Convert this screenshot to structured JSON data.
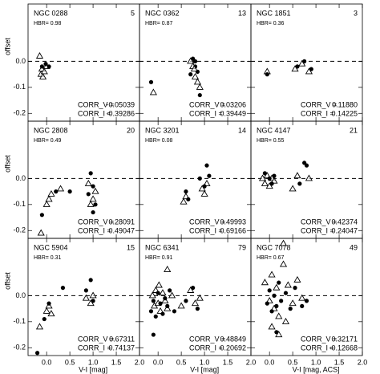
{
  "chart_data": [
    {
      "type": "scatter",
      "title": "NGC 0288",
      "count": 5,
      "hbr": "HBR= 0.98",
      "corr_v_label": "CORR_V =",
      "corr_v": "-0.05039",
      "corr_i_label": "CORR_I =",
      "corr_i": "-0.39286",
      "ylabel": "offset",
      "xlim": [
        -0.4,
        2.0
      ],
      "ylim": [
        -0.23,
        0.22
      ],
      "xticks": [
        {
          "value": 0,
          "label": "0.0"
        },
        0.5,
        {
          "value": 1,
          "label": "1.0"
        },
        1.5,
        {
          "value": 2,
          "label": "2.0"
        }
      ],
      "yticks": [
        {
          "value": 0,
          "label": "0.0"
        },
        -0.1,
        -0.2
      ],
      "hline": 0,
      "ytick_labels": true,
      "xtick_labels": false,
      "series": [
        {
          "marker": "triangle",
          "x": [
            -0.15,
            -0.12,
            -0.1,
            -0.05,
            0.0,
            -0.08
          ],
          "y": [
            0.02,
            -0.05,
            -0.03,
            -0.04,
            -0.02,
            -0.06
          ]
        },
        {
          "marker": "circle",
          "x": [
            -0.02,
            0.05,
            -0.1
          ],
          "y": [
            -0.01,
            -0.02,
            -0.02
          ]
        }
      ]
    },
    {
      "type": "scatter",
      "title": "NGC 0362",
      "count": 13,
      "hbr": "HBR= 0.87",
      "corr_v_label": "CORR_V =",
      "corr_v": "0.03206",
      "corr_i_label": "CORR_I =",
      "corr_i": "0.39449",
      "xlim": [
        -0.4,
        2.0
      ],
      "ylim": [
        -0.23,
        0.22
      ],
      "xticks": [
        {
          "value": 0,
          "label": "0.0"
        },
        0.5,
        {
          "value": 1,
          "label": "1.0"
        },
        1.5,
        {
          "value": 2,
          "label": "2.0"
        }
      ],
      "yticks": [
        {
          "value": 0,
          "label": "0.0"
        },
        -0.1,
        -0.2
      ],
      "hline": 0,
      "ytick_labels": false,
      "xtick_labels": false,
      "series": [
        {
          "marker": "circle",
          "x": [
            -0.15,
            0.75,
            0.8,
            0.85,
            0.9,
            0.8,
            0.7
          ],
          "y": [
            -0.08,
            0.01,
            -0.02,
            -0.04,
            -0.13,
            0.0,
            -0.05
          ]
        },
        {
          "marker": "triangle",
          "x": [
            -0.1,
            0.75,
            0.8,
            0.85,
            0.9,
            0.7,
            0.78
          ],
          "y": [
            -0.12,
            -0.02,
            -0.06,
            -0.08,
            -0.1,
            0.0,
            -0.03
          ]
        }
      ]
    },
    {
      "type": "scatter",
      "title": "NGC 1851",
      "count": 3,
      "hbr": "HBR= 0.36",
      "corr_v_label": "CORR_V =",
      "corr_v": "0.11880",
      "corr_i_label": "CORR_I =",
      "corr_i": "0.14225",
      "xlim": [
        -0.4,
        2.0
      ],
      "ylim": [
        -0.23,
        0.22
      ],
      "xticks": [
        {
          "value": 0,
          "label": "0.0"
        },
        0.5,
        {
          "value": 1,
          "label": "1.0"
        },
        1.5,
        {
          "value": 2,
          "label": "2.0"
        }
      ],
      "yticks": [
        {
          "value": 0,
          "label": "0.0"
        },
        -0.1,
        -0.2
      ],
      "hline": 0,
      "ytick_labels": false,
      "xtick_labels": false,
      "series": [
        {
          "marker": "triangle",
          "x": [
            -0.05,
            0.55,
            0.7,
            0.85
          ],
          "y": [
            -0.04,
            -0.03,
            -0.01,
            -0.04
          ]
        },
        {
          "marker": "circle",
          "x": [
            -0.05,
            0.6,
            0.75,
            0.9
          ],
          "y": [
            -0.05,
            -0.02,
            0.0,
            -0.03
          ]
        }
      ]
    },
    {
      "type": "scatter",
      "title": "NGC 2808",
      "count": 20,
      "hbr": "HBR= 0.49",
      "corr_v_label": "CORR_V =",
      "corr_v": "0.28091",
      "corr_i_label": "CORR_I =",
      "corr_i": "0.49047",
      "ylabel": "offset",
      "xlim": [
        -0.4,
        2.0
      ],
      "ylim": [
        -0.23,
        0.22
      ],
      "xticks": [
        {
          "value": 0,
          "label": "0.0"
        },
        0.5,
        {
          "value": 1,
          "label": "1.0"
        },
        1.5,
        {
          "value": 2,
          "label": "2.0"
        }
      ],
      "yticks": [
        {
          "value": 0,
          "label": "0.0"
        },
        -0.1,
        -0.2
      ],
      "hline": 0,
      "ytick_labels": true,
      "xtick_labels": false,
      "series": [
        {
          "marker": "circle",
          "x": [
            -0.1,
            0.2,
            0.5,
            0.9,
            1.0,
            1.05,
            0.95,
            1.0
          ],
          "y": [
            -0.14,
            -0.05,
            -0.05,
            -0.06,
            -0.03,
            -0.1,
            0.02,
            -0.13
          ]
        },
        {
          "marker": "triangle",
          "x": [
            -0.12,
            0.0,
            0.05,
            0.1,
            0.3,
            0.9,
            1.0,
            0.95,
            1.05
          ],
          "y": [
            -0.21,
            -0.1,
            -0.08,
            -0.06,
            -0.04,
            -0.02,
            -0.08,
            -0.1,
            -0.05
          ]
        }
      ]
    },
    {
      "type": "scatter",
      "title": "NGC 3201",
      "count": 14,
      "hbr": "HBR= 0.08",
      "corr_v_label": "CORR_V =",
      "corr_v": "0.49993",
      "corr_i_label": "CORR_I =",
      "corr_i": "0.69166",
      "xlim": [
        -0.4,
        2.0
      ],
      "ylim": [
        -0.23,
        0.22
      ],
      "xticks": [
        {
          "value": 0,
          "label": "0.0"
        },
        0.5,
        {
          "value": 1,
          "label": "1.0"
        },
        1.5,
        {
          "value": 2,
          "label": "2.0"
        }
      ],
      "yticks": [
        {
          "value": 0,
          "label": "0.0"
        },
        -0.1,
        -0.2
      ],
      "hline": 0,
      "ytick_labels": false,
      "xtick_labels": false,
      "series": [
        {
          "marker": "triangle",
          "x": [
            0.55,
            0.6,
            0.95,
            1.05,
            1.0
          ],
          "y": [
            -0.09,
            -0.07,
            -0.04,
            -0.02,
            -0.06
          ]
        },
        {
          "marker": "circle",
          "x": [
            0.6,
            0.65,
            0.9,
            1.0,
            1.05,
            1.1
          ],
          "y": [
            -0.05,
            -0.08,
            0.0,
            -0.03,
            0.05,
            0.01
          ]
        }
      ]
    },
    {
      "type": "scatter",
      "title": "NGC 4147",
      "count": 21,
      "hbr": "HBR= 0.55",
      "corr_v_label": "CORR_V =",
      "corr_v": "0.42374",
      "corr_i_label": "CORR_I =",
      "corr_i": "0.24047",
      "xlim": [
        -0.4,
        2.0
      ],
      "ylim": [
        -0.23,
        0.22
      ],
      "xticks": [
        {
          "value": 0,
          "label": "0.0"
        },
        0.5,
        {
          "value": 1,
          "label": "1.0"
        },
        1.5,
        {
          "value": 2,
          "label": "2.0"
        }
      ],
      "yticks": [
        {
          "value": 0,
          "label": "0.0"
        },
        -0.1,
        -0.2
      ],
      "hline": 0,
      "ytick_labels": false,
      "xtick_labels": false,
      "series": [
        {
          "marker": "triangle",
          "x": [
            -0.15,
            -0.1,
            -0.05,
            0.0,
            0.05,
            0.1,
            0.5,
            0.6,
            0.85
          ],
          "y": [
            0.0,
            -0.02,
            0.01,
            -0.03,
            0.0,
            -0.01,
            -0.04,
            0.01,
            0.0
          ]
        },
        {
          "marker": "circle",
          "x": [
            -0.1,
            0.0,
            0.05,
            0.1,
            0.65,
            0.75,
            0.8
          ],
          "y": [
            0.02,
            0.0,
            -0.02,
            0.01,
            -0.02,
            0.06,
            0.05
          ]
        }
      ]
    },
    {
      "type": "scatter",
      "title": "NGC 5904",
      "count": 15,
      "hbr": "HBR= 0.31",
      "corr_v_label": "CORR_V =",
      "corr_v": "0.67311",
      "corr_i_label": "CORR_I =",
      "corr_i": "0.74137",
      "ylabel": "offset",
      "xlabel": "V-I [mag]",
      "xlim": [
        -0.4,
        2.0
      ],
      "ylim": [
        -0.23,
        0.22
      ],
      "xticks": [
        {
          "value": 0,
          "label": "0.0"
        },
        0.5,
        {
          "value": 1,
          "label": "1.0"
        },
        1.5,
        {
          "value": 2,
          "label": "2.0"
        }
      ],
      "yticks": [
        {
          "value": 0,
          "label": "0.0"
        },
        -0.1,
        -0.2
      ],
      "hline": 0,
      "ytick_labels": true,
      "xtick_labels": true,
      "series": [
        {
          "marker": "triangle",
          "x": [
            -0.15,
            0.0,
            0.05,
            0.1,
            0.85,
            0.95,
            1.0
          ],
          "y": [
            -0.12,
            -0.06,
            -0.04,
            -0.07,
            -0.01,
            -0.03,
            0.0
          ]
        },
        {
          "marker": "circle",
          "x": [
            -0.2,
            -0.05,
            0.05,
            0.35,
            0.95,
            1.0,
            0.85
          ],
          "y": [
            -0.22,
            -0.09,
            -0.03,
            0.03,
            0.06,
            -0.02,
            0.02
          ]
        }
      ]
    },
    {
      "type": "scatter",
      "title": "NGC 6341",
      "count": 79,
      "hbr": "HBR= 0.91",
      "corr_v_label": "CORR_V =",
      "corr_v": "0.48849",
      "corr_i_label": "CORR_I =",
      "corr_i": "0.20692",
      "xlabel": "V-I [mag]",
      "xlim": [
        -0.4,
        2.0
      ],
      "ylim": [
        -0.23,
        0.22
      ],
      "xticks": [
        {
          "value": 0,
          "label": "0.0"
        },
        0.5,
        {
          "value": 1,
          "label": "1.0"
        },
        1.5,
        {
          "value": 2,
          "label": "2.0"
        }
      ],
      "yticks": [
        {
          "value": 0,
          "label": "0.0"
        },
        -0.1,
        -0.2
      ],
      "hline": 0,
      "ytick_labels": false,
      "xtick_labels": true,
      "series": [
        {
          "marker": "triangle",
          "x": [
            -0.12,
            -0.08,
            -0.05,
            0.0,
            0.02,
            0.05,
            0.1,
            0.15,
            0.2,
            0.3,
            0.5,
            0.7,
            0.8,
            0.9,
            0.2
          ],
          "y": [
            0.0,
            -0.04,
            0.02,
            -0.03,
            0.04,
            -0.06,
            0.01,
            -0.02,
            -0.05,
            0.0,
            -0.04,
            0.02,
            -0.03,
            -0.01,
            0.1
          ]
        },
        {
          "marker": "circle",
          "x": [
            -0.15,
            -0.1,
            -0.05,
            0.0,
            0.05,
            0.1,
            0.15,
            0.2,
            0.25,
            0.35,
            0.6,
            0.75,
            0.85,
            -0.1
          ],
          "y": [
            -0.06,
            -0.02,
            -0.08,
            0.01,
            -0.03,
            -0.07,
            -0.01,
            -0.04,
            0.02,
            -0.06,
            -0.02,
            0.03,
            -0.05,
            -0.15
          ]
        }
      ]
    },
    {
      "type": "scatter",
      "title": "NGC 7078",
      "count": 49,
      "hbr": "HBR= 0.67",
      "corr_v_label": "CORR_V =",
      "corr_v": "0.32171",
      "corr_i_label": "CORR_I =",
      "corr_i": "-0.12668",
      "xlabel": "V-I [mag, ACS]",
      "xlim": [
        -0.4,
        2.0
      ],
      "ylim": [
        -0.23,
        0.22
      ],
      "xticks": [
        {
          "value": 0,
          "label": "0.0"
        },
        0.5,
        {
          "value": 1,
          "label": "1.0"
        },
        1.5,
        {
          "value": 2,
          "label": "2.0"
        }
      ],
      "yticks": [
        {
          "value": 0,
          "label": "0.0"
        },
        -0.1,
        -0.2
      ],
      "hline": 0,
      "ytick_labels": false,
      "xtick_labels": true,
      "series": [
        {
          "marker": "triangle",
          "x": [
            -0.1,
            0.0,
            0.05,
            0.1,
            0.15,
            0.2,
            0.3,
            0.35,
            0.4,
            0.5,
            0.6,
            0.7,
            0.3,
            0.2,
            0.05
          ],
          "y": [
            0.05,
            -0.02,
            0.08,
            -0.05,
            0.03,
            -0.08,
            0.12,
            -0.1,
            0.04,
            -0.03,
            0.06,
            -0.01,
            0.2,
            -0.15,
            -0.12
          ]
        },
        {
          "marker": "circle",
          "x": [
            -0.05,
            0.0,
            0.05,
            0.1,
            0.15,
            0.2,
            0.25,
            0.35,
            0.45,
            0.55,
            0.7,
            0.8,
            0.15
          ],
          "y": [
            -0.03,
            0.02,
            -0.06,
            0.0,
            -0.04,
            0.05,
            -0.02,
            0.01,
            -0.05,
            0.03,
            -0.04,
            -0.02,
            -0.14
          ]
        }
      ]
    }
  ]
}
